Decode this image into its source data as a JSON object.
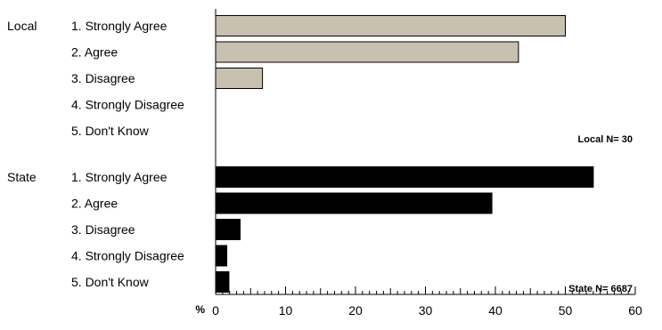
{
  "chart_data": {
    "type": "bar",
    "orientation": "horizontal",
    "categories": [
      "1. Strongly Agree",
      "2. Agree",
      "3. Disagree",
      "4. Strongly Disagree",
      "5. Don't Know"
    ],
    "series": [
      {
        "name": "Local",
        "values": [
          50.0,
          43.3,
          6.7,
          0,
          0
        ],
        "color": "#c8c0b0",
        "n_label": "Local N= 30"
      },
      {
        "name": "State",
        "values": [
          54.0,
          39.5,
          3.5,
          1.6,
          1.9
        ],
        "color": "#000000",
        "n_label": "State N= 6687"
      }
    ],
    "xlim": [
      0,
      60
    ],
    "x_ticks": [
      0,
      10,
      20,
      30,
      40,
      50,
      60
    ],
    "x_unit": "%",
    "grid": false
  }
}
